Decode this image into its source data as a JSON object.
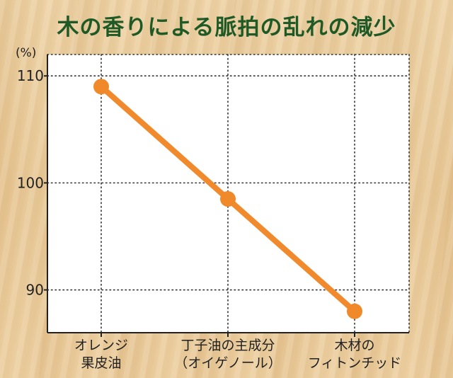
{
  "title": "木の香りによる脈拍の乱れの減少",
  "chart_data": {
    "type": "line",
    "title": "木の香りによる脈拍の乱れの減少",
    "ylabel": "(%)",
    "ylim": [
      86,
      112
    ],
    "yticks": [
      90,
      100,
      110
    ],
    "categories": [
      [
        "オレンジ",
        "果皮油"
      ],
      [
        "丁子油の主成分",
        "（オイゲノール）"
      ],
      [
        "木材の",
        "フィトンチッド"
      ]
    ],
    "series": [
      {
        "values": [
          109,
          98.5,
          88
        ]
      }
    ],
    "grid": true,
    "colors": {
      "line": "#f08a2c",
      "marker": "#f0892a",
      "grid": "#333333",
      "axis": "#222222"
    }
  }
}
